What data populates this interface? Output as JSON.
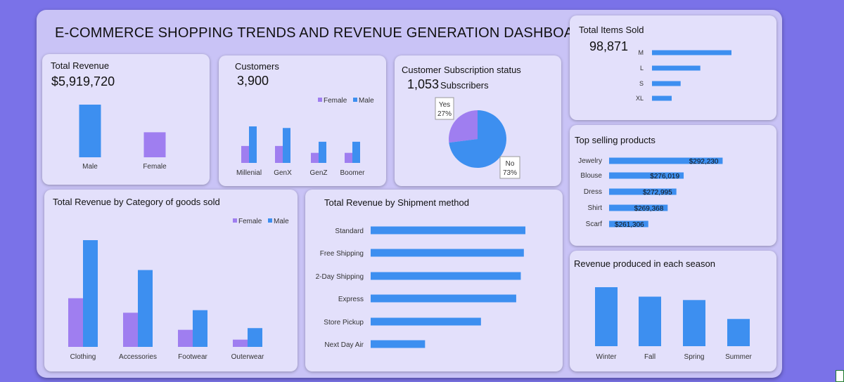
{
  "dashboard": {
    "title": "E-COMMERCE SHOPPING TRENDS AND REVENUE GENERATION DASHBOARD"
  },
  "colors": {
    "female": "#9f7ef0",
    "male": "#3d8ff0",
    "card": "#e3e0fb",
    "board": "#c9c3f6",
    "background": "#7a72e8"
  },
  "total_revenue": {
    "title": "Total Revenue",
    "value": "$5,919,720"
  },
  "customers": {
    "title": "Customers",
    "value": "3,900"
  },
  "subscription": {
    "title": "Customer Subscription status",
    "value": "1,053",
    "suffix": "Subscribers"
  },
  "items_sold": {
    "title": "Total Items Sold",
    "value": "98,871"
  },
  "top_products": {
    "title": "Top selling products"
  },
  "season": {
    "title": "Revenue produced in each season"
  },
  "category": {
    "title": "Total Revenue by Category of goods sold"
  },
  "shipment": {
    "title": "Total Revenue by Shipment method"
  },
  "chart_data": [
    {
      "id": "revenue-by-gender",
      "type": "bar",
      "categories": [
        "Male",
        "Female"
      ],
      "values": [
        4000000,
        1900000
      ],
      "colors": [
        "#3d8ff0",
        "#9f7ef0"
      ]
    },
    {
      "id": "customers-by-generation",
      "type": "bar",
      "categories": [
        "Millenial",
        "GenX",
        "GenZ",
        "Boomer"
      ],
      "series": [
        {
          "name": "Female",
          "values": [
            320,
            320,
            190,
            190
          ],
          "color": "#9f7ef0"
        },
        {
          "name": "Male",
          "values": [
            690,
            660,
            400,
            400
          ],
          "color": "#3d8ff0"
        }
      ],
      "legend": "top-right"
    },
    {
      "id": "subscription-status",
      "type": "pie",
      "categories": [
        "Yes",
        "No"
      ],
      "values": [
        27,
        73
      ],
      "labels": [
        "27%",
        "73%"
      ],
      "colors": [
        "#9f7ef0",
        "#3d8ff0"
      ]
    },
    {
      "id": "items-by-size",
      "type": "bar",
      "orientation": "horizontal",
      "categories": [
        "M",
        "L",
        "S",
        "XL"
      ],
      "values": [
        44410,
        27000,
        16000,
        11000
      ],
      "color": "#3d8ff0"
    },
    {
      "id": "top-selling-products",
      "type": "bar",
      "orientation": "horizontal",
      "categories": [
        "Jewelry",
        "Blouse",
        "Dress",
        "Shirt",
        "Scarf"
      ],
      "values": [
        292230,
        276019,
        272995,
        269368,
        261306
      ],
      "labels": [
        "$292,230",
        "$276,019",
        "$272,995",
        "$269,368",
        "$261,306"
      ],
      "xlim": [
        245000,
        300000
      ],
      "color": "#3d8ff0"
    },
    {
      "id": "revenue-by-category",
      "type": "bar",
      "categories": [
        "Clothing",
        "Accessories",
        "Footwear",
        "Outerwear"
      ],
      "series": [
        {
          "name": "Female",
          "values": [
            570000,
            400000,
            200000,
            85000
          ],
          "color": "#9f7ef0"
        },
        {
          "name": "Male",
          "values": [
            1250000,
            900000,
            430000,
            220000
          ],
          "color": "#3d8ff0"
        }
      ],
      "legend": "top-right"
    },
    {
      "id": "revenue-by-shipment",
      "type": "bar",
      "orientation": "horizontal",
      "categories": [
        "Standard",
        "Free Shipping",
        "2-Day Shipping",
        "Express",
        "Store Pickup",
        "Next Day Air"
      ],
      "values": [
        1010000,
        1000000,
        980000,
        950000,
        720000,
        355000
      ],
      "color": "#3d8ff0"
    },
    {
      "id": "revenue-by-season",
      "type": "bar",
      "categories": [
        "Winter",
        "Fall",
        "Spring",
        "Summer"
      ],
      "values": [
        1560000,
        1310000,
        1220000,
        720000
      ],
      "color": "#3d8ff0"
    }
  ]
}
